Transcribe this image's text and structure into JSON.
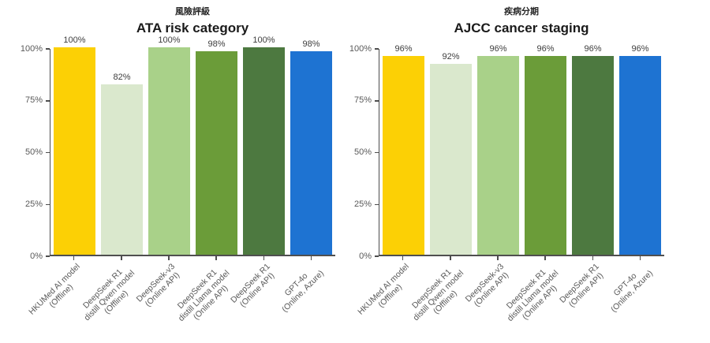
{
  "style": {
    "background": "#ffffff",
    "axis_color": "#4d4d4d",
    "tick_text_color": "#595959",
    "value_label_color": "#3d3d3d",
    "title_color": "#1a1a1a",
    "subtitle_color": "#262626",
    "bar_colors": [
      "#fcd005",
      "#dae8cd",
      "#a9d189",
      "#6b9c39",
      "#4d7940",
      "#1e73d2"
    ]
  },
  "chart_data": [
    {
      "type": "bar",
      "subtitle": "風險評級",
      "title": "ATA risk category",
      "categories": [
        "HKUMed AI model (Offline)",
        "DeepSeek R1 distill Qwen model (Offline)",
        "DeepSeek-v3 (Online API)",
        "DeepSeek R1 distill Llama model (Online API)",
        "DeepSeek R1 (Online API)",
        "GPT-4o (Online, Azure)"
      ],
      "category_lines": [
        [
          "HKUMed AI model",
          "(Offline)"
        ],
        [
          "DeepSeek R1",
          "distill Qwen model",
          "(Offline)"
        ],
        [
          "DeepSeek-v3",
          "(Online API)"
        ],
        [
          "DeepSeek R1",
          "distill Llama model",
          "(Online API)"
        ],
        [
          "DeepSeek R1",
          "(Online API)"
        ],
        [
          "GPT-4o",
          "(Online, Azure)"
        ]
      ],
      "values": [
        100,
        82,
        100,
        98,
        100,
        98
      ],
      "value_labels": [
        "100%",
        "82%",
        "100%",
        "98%",
        "100%",
        "98%"
      ],
      "xlabel": "",
      "ylabel": "",
      "ylim": [
        0,
        100
      ],
      "y_ticks": [
        {
          "value": 0,
          "label": "0%"
        },
        {
          "value": 25,
          "label": "25%"
        },
        {
          "value": 50,
          "label": "50%"
        },
        {
          "value": 75,
          "label": "75%"
        },
        {
          "value": 100,
          "label": "100%"
        }
      ],
      "grid": false,
      "legend": "none"
    },
    {
      "type": "bar",
      "subtitle": "疾病分期",
      "title": "AJCC cancer staging",
      "categories": [
        "HKUMed AI model (Offline)",
        "DeepSeek R1 distill Qwen model (Offline)",
        "DeepSeek-v3 (Online API)",
        "DeepSeek R1 distill Llama model (Online API)",
        "DeepSeek R1 (Online API)",
        "GPT-4o (Online, Azure)"
      ],
      "category_lines": [
        [
          "HKUMed AI model",
          "(Offline)"
        ],
        [
          "DeepSeek R1",
          "distill Qwen model",
          "(Offline)"
        ],
        [
          "DeepSeek-v3",
          "(Online API)"
        ],
        [
          "DeepSeek R1",
          "distill Llama model",
          "(Online API)"
        ],
        [
          "DeepSeek R1",
          "(Online API)"
        ],
        [
          "GPT-4o",
          "(Online, Azure)"
        ]
      ],
      "values": [
        96,
        92,
        96,
        96,
        96,
        96
      ],
      "value_labels": [
        "96%",
        "92%",
        "96%",
        "96%",
        "96%",
        "96%"
      ],
      "xlabel": "",
      "ylabel": "",
      "ylim": [
        0,
        100
      ],
      "y_ticks": [
        {
          "value": 0,
          "label": "0%"
        },
        {
          "value": 25,
          "label": "25%"
        },
        {
          "value": 50,
          "label": "50%"
        },
        {
          "value": 75,
          "label": "75%"
        },
        {
          "value": 100,
          "label": "100%"
        }
      ],
      "grid": false,
      "legend": "none"
    }
  ]
}
